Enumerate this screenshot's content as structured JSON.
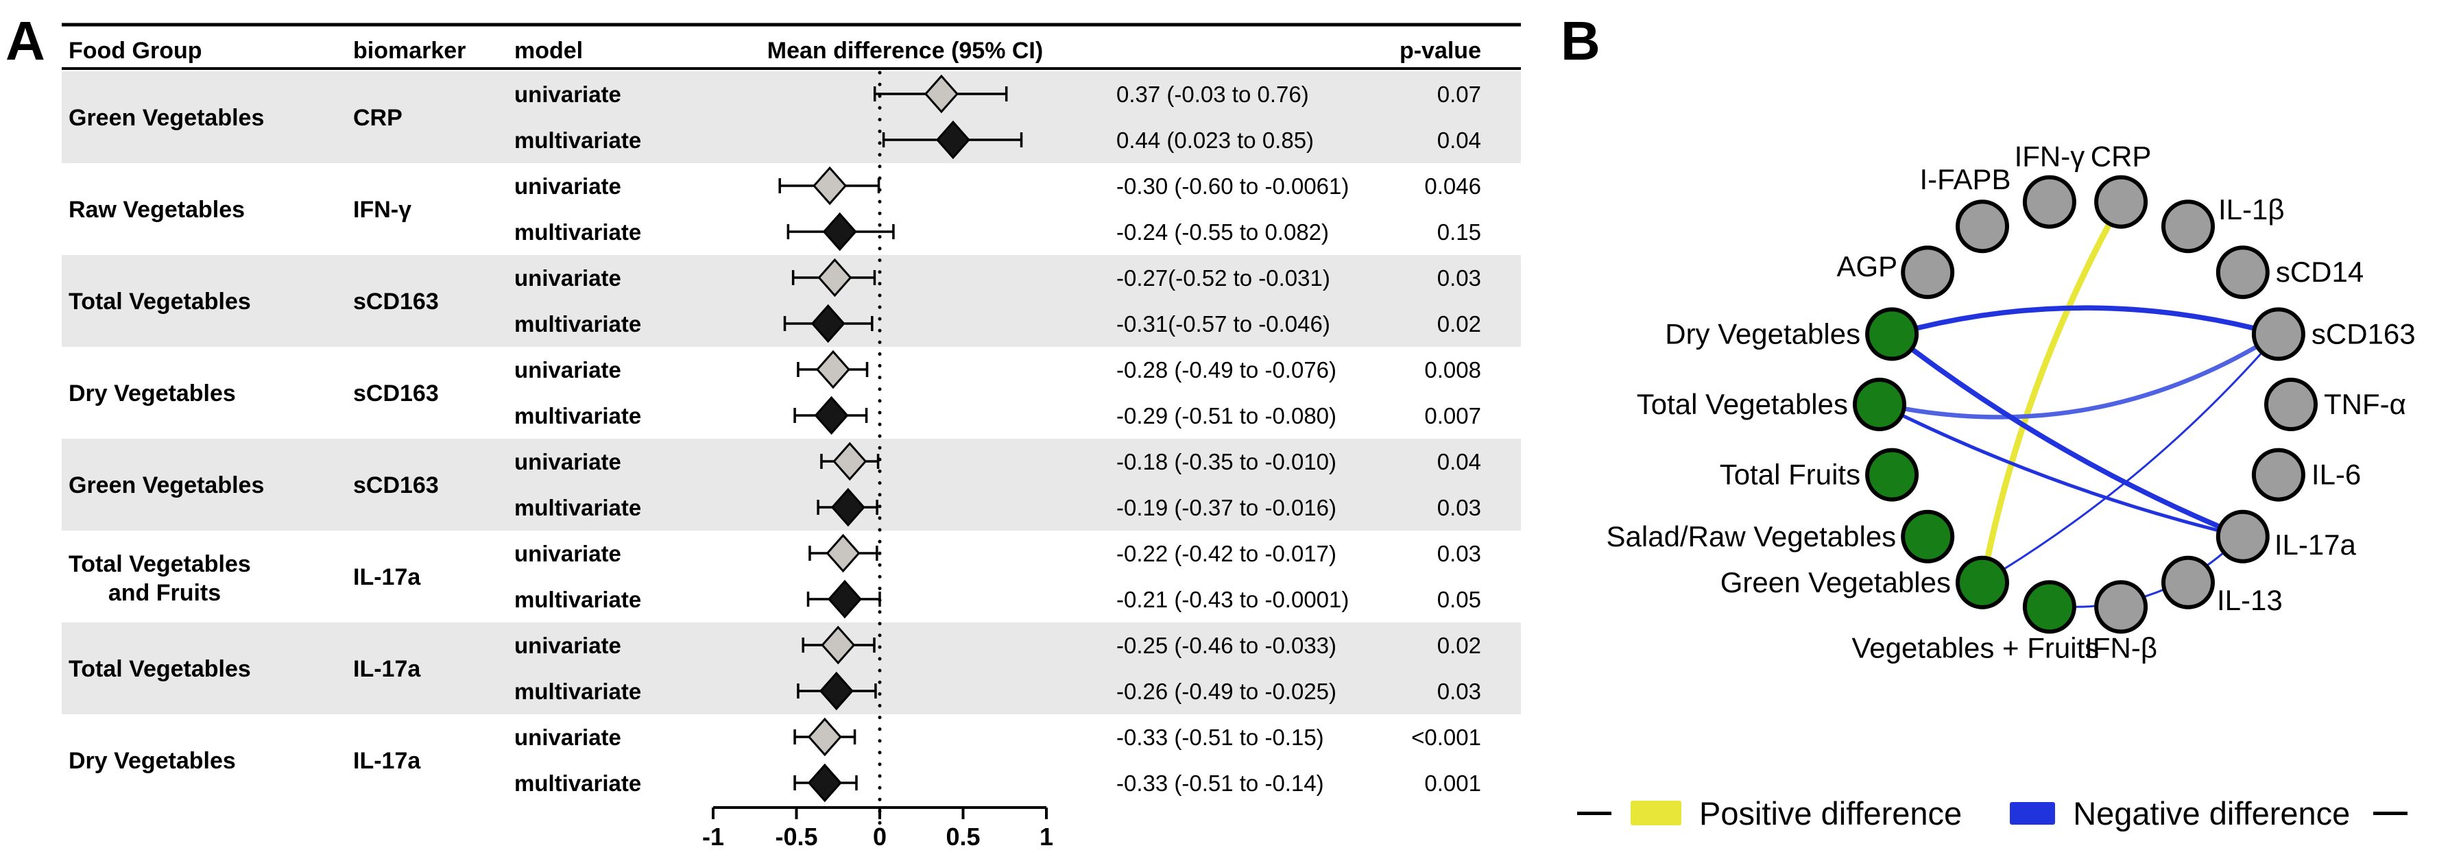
{
  "chart_data": [
    {
      "type": "forest",
      "panel_label": "A",
      "columns": {
        "food_group": "Food Group",
        "biomarker": "biomarker",
        "model": "model",
        "mean_diff": "Mean difference (95% CI)",
        "p": "p-value"
      },
      "axis": {
        "min": -1,
        "max": 1,
        "ticks": [
          {
            "v": -1,
            "label": "-1"
          },
          {
            "v": -0.5,
            "label": "-0.5"
          },
          {
            "v": 0,
            "label": "0"
          },
          {
            "v": 0.5,
            "label": "0.5"
          },
          {
            "v": 1,
            "label": "1"
          }
        ]
      },
      "colors": {
        "shading": "#e8e8e8",
        "univariate_diamond": "#c9c6c2",
        "multivariate_diamond": "#161616",
        "line": "#000000"
      },
      "groups": [
        {
          "food_group": "Green Vegetables",
          "biomarker": "CRP",
          "shaded": true,
          "rows": [
            {
              "model": "univariate",
              "mean": 0.37,
              "lo": -0.03,
              "hi": 0.76,
              "ci_text": "0.37 (-0.03 to 0.76)",
              "p": "0.07"
            },
            {
              "model": "multivariate",
              "mean": 0.44,
              "lo": 0.023,
              "hi": 0.85,
              "ci_text": "0.44 (0.023 to 0.85)",
              "p": "0.04"
            }
          ]
        },
        {
          "food_group": "Raw Vegetables",
          "biomarker": "IFN-γ",
          "shaded": false,
          "rows": [
            {
              "model": "univariate",
              "mean": -0.3,
              "lo": -0.6,
              "hi": -0.0061,
              "ci_text": "-0.30 (-0.60 to -0.0061)",
              "p": "0.046"
            },
            {
              "model": "multivariate",
              "mean": -0.24,
              "lo": -0.55,
              "hi": 0.082,
              "ci_text": "-0.24 (-0.55 to 0.082)",
              "p": "0.15"
            }
          ]
        },
        {
          "food_group": "Total Vegetables",
          "biomarker": "sCD163",
          "shaded": true,
          "rows": [
            {
              "model": "univariate",
              "mean": -0.27,
              "lo": -0.52,
              "hi": -0.031,
              "ci_text": "-0.27(-0.52 to -0.031)",
              "p": "0.03"
            },
            {
              "model": "multivariate",
              "mean": -0.31,
              "lo": -0.57,
              "hi": -0.046,
              "ci_text": "-0.31(-0.57 to -0.046)",
              "p": "0.02"
            }
          ]
        },
        {
          "food_group": "Dry Vegetables",
          "biomarker": "sCD163",
          "shaded": false,
          "rows": [
            {
              "model": "univariate",
              "mean": -0.28,
              "lo": -0.49,
              "hi": -0.076,
              "ci_text": "-0.28 (-0.49 to -0.076)",
              "p": "0.008"
            },
            {
              "model": "multivariate",
              "mean": -0.29,
              "lo": -0.51,
              "hi": -0.08,
              "ci_text": "-0.29 (-0.51 to -0.080)",
              "p": "0.007"
            }
          ]
        },
        {
          "food_group": "Green Vegetables",
          "biomarker": "sCD163",
          "shaded": true,
          "rows": [
            {
              "model": "univariate",
              "mean": -0.18,
              "lo": -0.35,
              "hi": -0.01,
              "ci_text": "-0.18 (-0.35 to -0.010)",
              "p": "0.04"
            },
            {
              "model": "multivariate",
              "mean": -0.19,
              "lo": -0.37,
              "hi": -0.016,
              "ci_text": "-0.19 (-0.37 to -0.016)",
              "p": "0.03"
            }
          ]
        },
        {
          "food_group": "Total Vegetables\nand Fruits",
          "biomarker": "IL-17a",
          "shaded": false,
          "rows": [
            {
              "model": "univariate",
              "mean": -0.22,
              "lo": -0.42,
              "hi": -0.017,
              "ci_text": "-0.22 (-0.42 to -0.017)",
              "p": "0.03"
            },
            {
              "model": "multivariate",
              "mean": -0.21,
              "lo": -0.43,
              "hi": -0.0001,
              "ci_text": "-0.21 (-0.43 to -0.0001)",
              "p": "0.05"
            }
          ]
        },
        {
          "food_group": "Total Vegetables",
          "biomarker": "IL-17a",
          "shaded": true,
          "rows": [
            {
              "model": "univariate",
              "mean": -0.25,
              "lo": -0.46,
              "hi": -0.033,
              "ci_text": "-0.25 (-0.46 to -0.033)",
              "p": "0.02"
            },
            {
              "model": "multivariate",
              "mean": -0.26,
              "lo": -0.49,
              "hi": -0.025,
              "ci_text": "-0.26 (-0.49  to -0.025)",
              "p": "0.03"
            }
          ]
        },
        {
          "food_group": "Dry Vegetables",
          "biomarker": "IL-17a",
          "shaded": false,
          "rows": [
            {
              "model": "univariate",
              "mean": -0.33,
              "lo": -0.51,
              "hi": -0.15,
              "ci_text": "-0.33 (-0.51 to -0.15)",
              "p": "<0.001"
            },
            {
              "model": "multivariate",
              "mean": -0.33,
              "lo": -0.51,
              "hi": -0.14,
              "ci_text": "-0.33 (-0.51 to -0.14)",
              "p": "0.001"
            }
          ]
        }
      ]
    },
    {
      "type": "network",
      "panel_label": "B",
      "colors": {
        "food_node": "#177d17",
        "biomarker_node": "#9d9d9d",
        "node_border": "#000000",
        "positive": "#e9e63a",
        "negative": "#2133dd",
        "negative_light": "#4f63e2"
      },
      "nodes": [
        {
          "label": "IFN-γ",
          "kind": "biomarker",
          "angle": -10,
          "label_side": "top"
        },
        {
          "label": "CRP",
          "kind": "biomarker",
          "angle": 10,
          "label_side": "top"
        },
        {
          "label": "IL-1β",
          "kind": "biomarker",
          "angle": 30,
          "label_side": "top-right"
        },
        {
          "label": "sCD14",
          "kind": "biomarker",
          "angle": 50,
          "label_side": "right"
        },
        {
          "label": "sCD163",
          "kind": "biomarker",
          "angle": 70,
          "label_side": "right"
        },
        {
          "label": "TNF-α",
          "kind": "biomarker",
          "angle": 90,
          "label_side": "right"
        },
        {
          "label": "IL-6",
          "kind": "biomarker",
          "angle": 110,
          "label_side": "right"
        },
        {
          "label": "IL-17a",
          "kind": "biomarker",
          "angle": 130,
          "label_side": "right-down"
        },
        {
          "label": "IL-13",
          "kind": "biomarker",
          "angle": 150,
          "label_side": "bottom-right"
        },
        {
          "label": "IFN-β",
          "kind": "biomarker",
          "angle": 170,
          "label_side": "bottom"
        },
        {
          "label": "Vegetables + Fruits",
          "kind": "food",
          "angle": 190,
          "label_side": "bottom-left"
        },
        {
          "label": "Green Vegetables",
          "kind": "food",
          "angle": 210,
          "label_side": "left"
        },
        {
          "label": "Salad/Raw Vegetables",
          "kind": "food",
          "angle": 230,
          "label_side": "left"
        },
        {
          "label": "Total Fruits",
          "kind": "food",
          "angle": 250,
          "label_side": "left"
        },
        {
          "label": "Total Vegetables",
          "kind": "food",
          "angle": 270,
          "label_side": "left"
        },
        {
          "label": "Dry Vegetables",
          "kind": "food",
          "angle": 290,
          "label_side": "left"
        },
        {
          "label": "AGP",
          "kind": "biomarker",
          "angle": 310,
          "label_side": "left-up"
        },
        {
          "label": "I-FAPB",
          "kind": "biomarker",
          "angle": 330,
          "label_side": "top-left"
        }
      ],
      "edges": [
        {
          "from": "CRP",
          "to": "Green Vegetables",
          "sign": "positive",
          "width": 9,
          "curve": 0.07
        },
        {
          "from": "Dry Vegetables",
          "to": "sCD163",
          "sign": "negative",
          "width": 7.5,
          "curve": -0.12
        },
        {
          "from": "Total Vegetables",
          "to": "sCD163",
          "sign": "negative",
          "shade": "light",
          "width": 6.5,
          "curve": 0.18
        },
        {
          "from": "Green Vegetables",
          "to": "sCD163",
          "sign": "negative",
          "width": 3,
          "curve": 0.07
        },
        {
          "from": "Dry Vegetables",
          "to": "IL-17a",
          "sign": "negative",
          "width": 7.5,
          "curve": 0.06
        },
        {
          "from": "Total Vegetables",
          "to": "IL-17a",
          "sign": "negative",
          "width": 5,
          "curve": 0.05
        },
        {
          "from": "Vegetables + Fruits",
          "to": "IL-17a",
          "sign": "negative",
          "width": 3,
          "curve": 0.18
        }
      ],
      "legend": {
        "positive_label": "Positive difference",
        "negative_label": "Negative difference"
      }
    }
  ]
}
